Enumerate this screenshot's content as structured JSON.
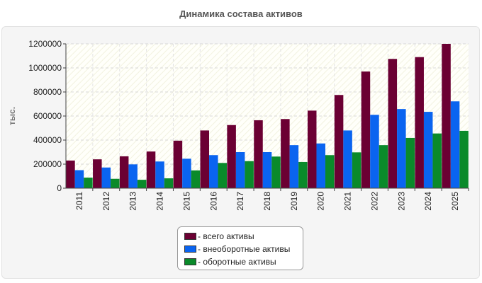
{
  "chart_data": {
    "type": "bar",
    "title": "Динамика состава активов",
    "xlabel": "",
    "ylabel": "тыс.",
    "ylim": [
      0,
      1200000
    ],
    "yticks": [
      0,
      200000,
      400000,
      600000,
      800000,
      1000000,
      1200000
    ],
    "grid": true,
    "legend_position": "bottom",
    "categories": [
      "2011",
      "2012",
      "2013",
      "2014",
      "2015",
      "2016",
      "2017",
      "2018",
      "2019",
      "2020",
      "2021",
      "2022",
      "2023",
      "2024",
      "2025"
    ],
    "series": [
      {
        "name": "- всего активы",
        "color": "#6b0033",
        "values": [
          230000,
          240000,
          265000,
          305000,
          395000,
          480000,
          525000,
          565000,
          575000,
          645000,
          775000,
          970000,
          1075000,
          1090000,
          1200000
        ]
      },
      {
        "name": "- внеоборотные активы",
        "color": "#0a64f0",
        "values": [
          150000,
          172000,
          198000,
          222000,
          245000,
          275000,
          300000,
          300000,
          358000,
          372000,
          480000,
          610000,
          658000,
          635000,
          722000
        ]
      },
      {
        "name": "- оборотные активы",
        "color": "#0a8a2a",
        "values": [
          88000,
          78000,
          70000,
          82000,
          148000,
          210000,
          225000,
          263000,
          218000,
          275000,
          298000,
          358000,
          418000,
          455000,
          477000
        ]
      }
    ]
  }
}
